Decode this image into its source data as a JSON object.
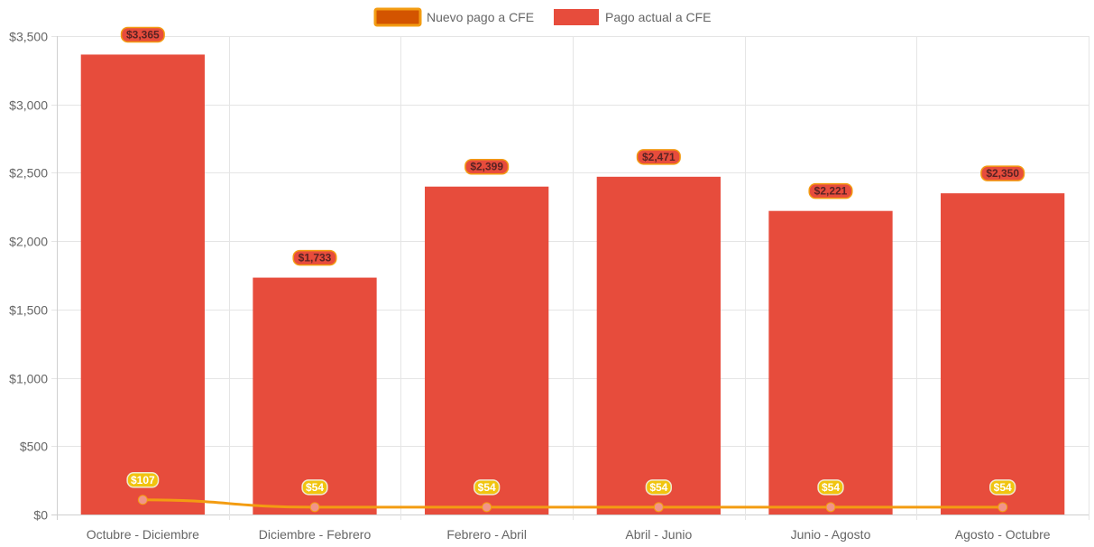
{
  "chart_data": {
    "type": "bar",
    "categories": [
      "Octubre - Diciembre",
      "Diciembre - Febrero",
      "Febrero - Abril",
      "Abril - Junio",
      "Junio - Agosto",
      "Agosto - Octubre"
    ],
    "series": [
      {
        "name": "Nuevo pago a CFE",
        "type": "line",
        "values": [
          107,
          54,
          54,
          54,
          54,
          54
        ],
        "labels": [
          "$107",
          "$54",
          "$54",
          "$54",
          "$54",
          "$54"
        ]
      },
      {
        "name": "Pago actual a CFE",
        "type": "bar",
        "values": [
          3365,
          1733,
          2399,
          2471,
          2221,
          2350
        ],
        "labels": [
          "$3,365",
          "$1,733",
          "$2,399",
          "$2,471",
          "$2,221",
          "$2,350"
        ]
      }
    ],
    "ylim": [
      0,
      3500
    ],
    "yticks": [
      0,
      500,
      1000,
      1500,
      2000,
      2500,
      3000,
      3500
    ],
    "ytick_labels": [
      "$0",
      "$500",
      "$1,000",
      "$1,500",
      "$2,000",
      "$2,500",
      "$3,000",
      "$3,500"
    ],
    "title": "",
    "xlabel": "",
    "ylabel": "",
    "grid": true,
    "legend_position": "top-center"
  },
  "colors": {
    "bar": "#e74c3c",
    "line": "#f39c12",
    "line_legend_fill": "#d35400",
    "line_point": "#f1948a",
    "line_label_bg": "#f1c40f",
    "grid": "#e5e5e5"
  }
}
